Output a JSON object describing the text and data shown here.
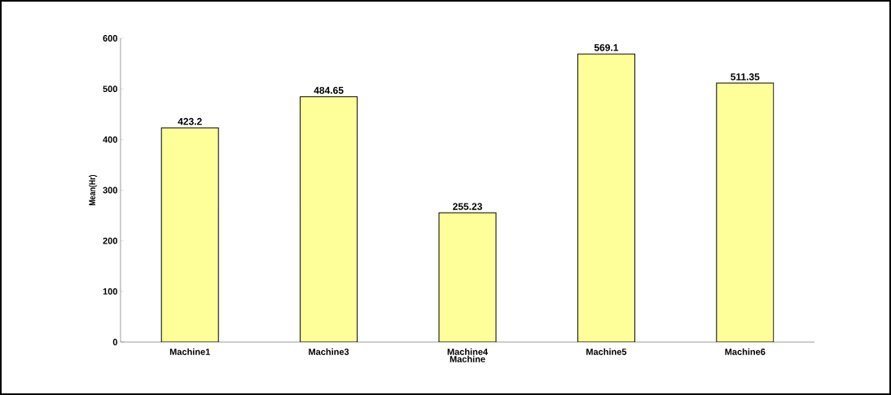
{
  "chart_data": {
    "type": "bar",
    "xlabel": "Machine",
    "ylabel": "Mean(Hr)",
    "categories": [
      "Machine1",
      "Machine3",
      "Machine4",
      "Machine5",
      "Machine6"
    ],
    "values": [
      423.2,
      484.65,
      255.23,
      569.1,
      511.35
    ],
    "color": "#ffff99",
    "ylim": [
      0,
      600
    ],
    "yticks": [
      0,
      100,
      200,
      300,
      400,
      500,
      600
    ],
    "data_labels": true
  }
}
